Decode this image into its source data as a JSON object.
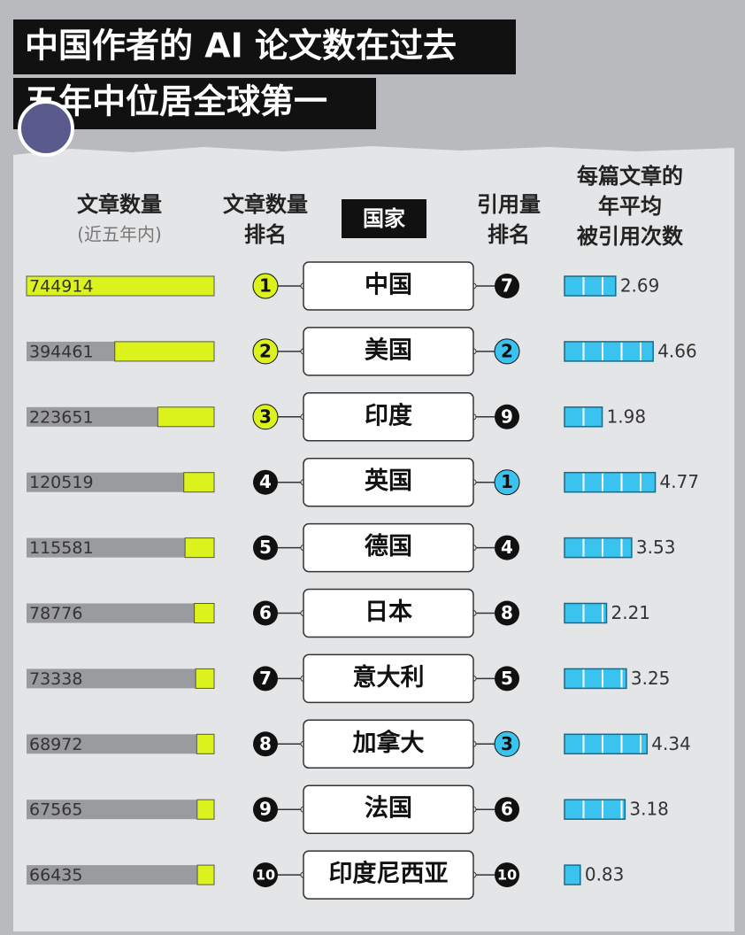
{
  "title": [
    "中国作者的 AI 论文数在过去",
    "五年中位居全球第一"
  ],
  "headers": {
    "papers": "文章数量",
    "papers_sub": "(近五年内)",
    "paper_rank": [
      "文章数量",
      "排名"
    ],
    "country": "国家",
    "citation_rank": [
      "引用量",
      "排名"
    ],
    "avg_citations": [
      "每篇文章的",
      "年平均",
      "被引用次数"
    ]
  },
  "rows": [
    {
      "country": "中国",
      "papers": 744914,
      "paper_rank": 1,
      "citation_rank": 7,
      "avg_citations": 2.69
    },
    {
      "country": "美国",
      "papers": 394461,
      "paper_rank": 2,
      "citation_rank": 2,
      "avg_citations": 4.66
    },
    {
      "country": "印度",
      "papers": 223651,
      "paper_rank": 3,
      "citation_rank": 9,
      "avg_citations": 1.98
    },
    {
      "country": "英国",
      "papers": 120519,
      "paper_rank": 4,
      "citation_rank": 1,
      "avg_citations": 4.77
    },
    {
      "country": "德国",
      "papers": 115581,
      "paper_rank": 5,
      "citation_rank": 4,
      "avg_citations": 3.53
    },
    {
      "country": "日本",
      "papers": 78776,
      "paper_rank": 6,
      "citation_rank": 8,
      "avg_citations": 2.21
    },
    {
      "country": "意大利",
      "papers": 73338,
      "paper_rank": 7,
      "citation_rank": 5,
      "avg_citations": 3.25
    },
    {
      "country": "加拿大",
      "papers": 68972,
      "paper_rank": 8,
      "citation_rank": 3,
      "avg_citations": 4.34
    },
    {
      "country": "法国",
      "papers": 67565,
      "paper_rank": 9,
      "citation_rank": 6,
      "avg_citations": 3.18
    },
    {
      "country": "印度尼西亚",
      "papers": 66435,
      "paper_rank": 10,
      "citation_rank": 10,
      "avg_citations": 0.83
    }
  ]
}
